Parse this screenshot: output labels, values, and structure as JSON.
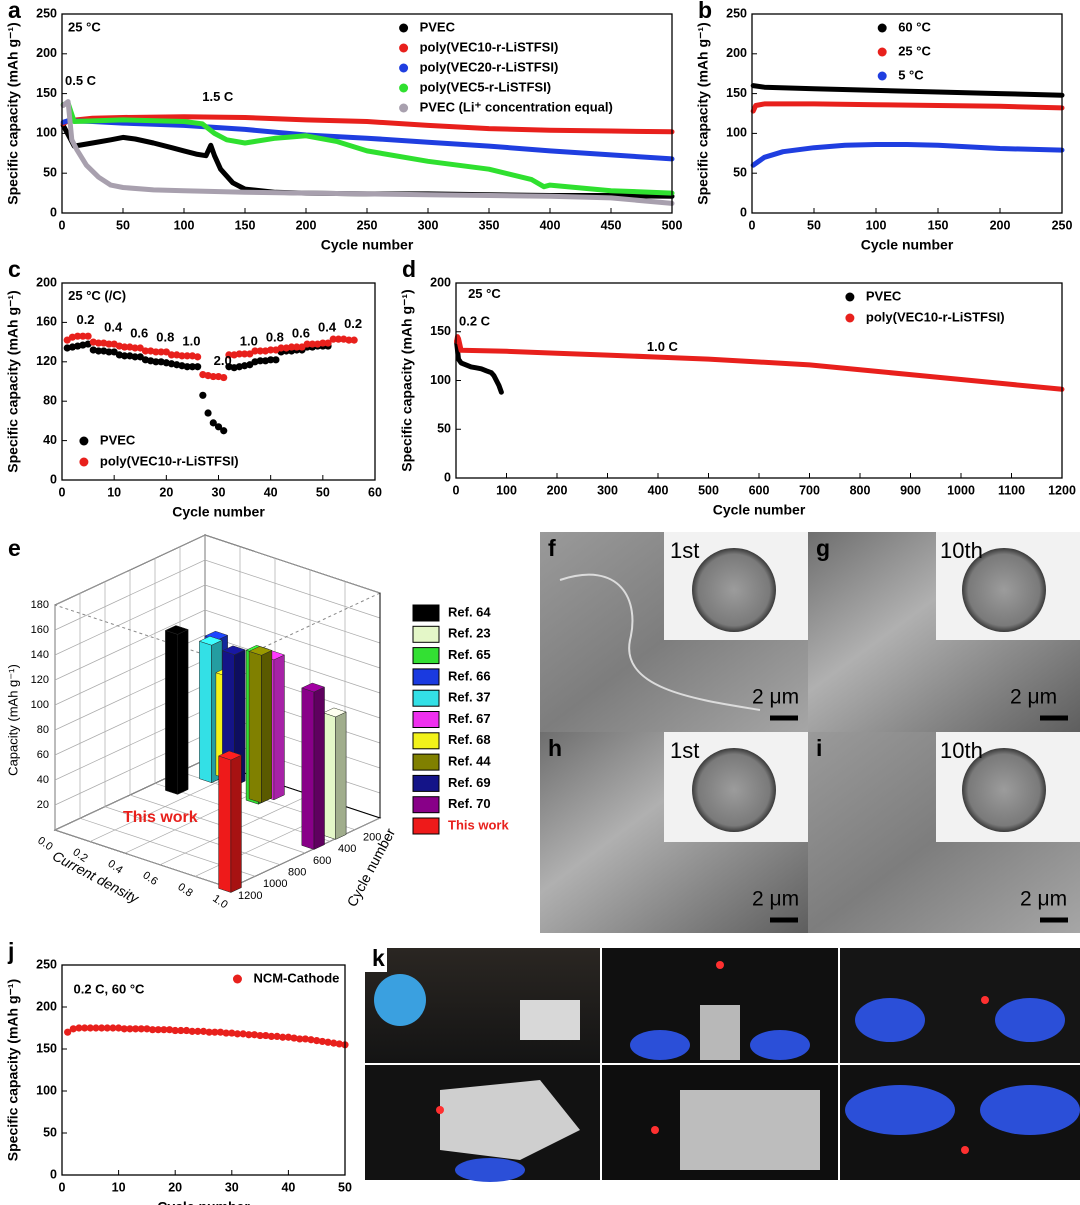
{
  "chart_data": [
    {
      "type": "line",
      "panel": "a",
      "xlabel": "Cycle number",
      "ylabel": "Specific capacity (mAh g⁻¹)",
      "xlim": [
        0,
        500
      ],
      "xticks": [
        0,
        50,
        100,
        150,
        200,
        250,
        300,
        350,
        400,
        450,
        500
      ],
      "ylim": [
        0,
        250
      ],
      "yticks": [
        0,
        50,
        100,
        150,
        200,
        250
      ],
      "legend": "upper right",
      "annotations": [
        "25 °C",
        "0.5 C",
        "1.5 C"
      ],
      "series": [
        {
          "name": "PVEC",
          "color": "#000000",
          "x": [
            1,
            10,
            25,
            40,
            50,
            60,
            75,
            90,
            100,
            110,
            118,
            122,
            125,
            130,
            140,
            150,
            175,
            200,
            250,
            300,
            350,
            400,
            450,
            500
          ],
          "values": [
            110,
            84,
            88,
            92,
            95,
            93,
            88,
            82,
            78,
            74,
            72,
            85,
            72,
            55,
            38,
            30,
            26,
            25,
            24,
            24,
            23,
            22,
            22,
            21
          ]
        },
        {
          "name": "poly(VEC10-r-LiSTFSI)",
          "color": "#e8201c",
          "x": [
            1,
            5,
            25,
            50,
            100,
            150,
            200,
            250,
            300,
            350,
            400,
            450,
            500
          ],
          "values": [
            112,
            116,
            119,
            120,
            121,
            120,
            117,
            115,
            110,
            106,
            104,
            103,
            102
          ]
        },
        {
          "name": "poly(VEC20-r-LiSTFSI)",
          "color": "#1f3ee0",
          "x": [
            1,
            5,
            25,
            50,
            100,
            150,
            200,
            250,
            300,
            350,
            400,
            450,
            500
          ],
          "values": [
            114,
            116,
            115,
            113,
            110,
            105,
            98,
            94,
            89,
            84,
            78,
            73,
            68
          ]
        },
        {
          "name": "poly(VEC5-r-LiSTFSI)",
          "color": "#2fe02f",
          "x": [
            1,
            5,
            10,
            50,
            100,
            115,
            125,
            135,
            150,
            175,
            200,
            225,
            250,
            300,
            350,
            385,
            395,
            400,
            450,
            500
          ],
          "values": [
            136,
            138,
            115,
            117,
            115,
            112,
            100,
            92,
            88,
            94,
            97,
            90,
            78,
            65,
            55,
            42,
            33,
            35,
            28,
            25
          ]
        },
        {
          "name": "PVEC (Li⁺ concentration equal)",
          "color": "#a8a0ae",
          "x": [
            1,
            5,
            8,
            12,
            20,
            30,
            40,
            50,
            75,
            100,
            150,
            200,
            250,
            300,
            350,
            400,
            450,
            500
          ],
          "values": [
            135,
            140,
            92,
            80,
            60,
            45,
            35,
            32,
            29,
            28,
            26,
            25,
            24,
            23,
            22,
            21,
            19,
            12
          ]
        }
      ]
    },
    {
      "type": "line",
      "panel": "b",
      "xlabel": "Cycle number",
      "ylabel": "Specific capacity (mAh g⁻¹)",
      "xlim": [
        0,
        250
      ],
      "xticks": [
        0,
        50,
        100,
        150,
        200,
        250
      ],
      "ylim": [
        0,
        250
      ],
      "yticks": [
        0,
        50,
        100,
        150,
        200,
        250
      ],
      "legend": "upper right",
      "series": [
        {
          "name": "60 °C",
          "color": "#000000",
          "x": [
            1,
            10,
            50,
            100,
            150,
            200,
            250
          ],
          "values": [
            160,
            158,
            156,
            154,
            152,
            150,
            148
          ]
        },
        {
          "name": "25 °C",
          "color": "#e8201c",
          "x": [
            1,
            3,
            10,
            50,
            100,
            150,
            200,
            250
          ],
          "values": [
            128,
            135,
            137,
            137,
            136,
            135,
            134,
            132
          ]
        },
        {
          "name": "5 °C",
          "color": "#1f3ee0",
          "x": [
            1,
            10,
            25,
            50,
            75,
            100,
            125,
            150,
            175,
            200,
            250
          ],
          "values": [
            60,
            70,
            77,
            82,
            85,
            86,
            86,
            85,
            83,
            81,
            79
          ]
        }
      ]
    },
    {
      "type": "scatter",
      "panel": "c",
      "xlabel": "Cycle number",
      "ylabel": "Specific capacity (mAh g⁻¹)",
      "xlim": [
        0,
        60
      ],
      "xticks": [
        0,
        10,
        20,
        30,
        40,
        50,
        60
      ],
      "ylim": [
        0,
        200
      ],
      "yticks": [
        0,
        40,
        80,
        120,
        160,
        200
      ],
      "legend": "lower left",
      "annotations": [
        "25 °C (/C)",
        "0.2",
        "0.4",
        "0.6",
        "0.8",
        "1.0",
        "2.0",
        "1.0",
        "0.8",
        "0.6",
        "0.4",
        "0.2"
      ],
      "series": [
        {
          "name": "PVEC",
          "color": "#000000",
          "x": [
            1,
            2,
            3,
            4,
            5,
            6,
            7,
            8,
            9,
            10,
            11,
            12,
            13,
            14,
            15,
            16,
            17,
            18,
            19,
            20,
            21,
            22,
            23,
            24,
            25,
            26,
            27,
            28,
            29,
            30,
            31,
            32,
            33,
            34,
            35,
            36,
            37,
            38,
            39,
            40,
            41,
            42,
            43,
            44,
            45,
            46,
            47,
            48,
            49,
            50,
            51
          ],
          "values": [
            134,
            135,
            136,
            137,
            138,
            132,
            131,
            131,
            130,
            130,
            127,
            126,
            126,
            125,
            125,
            122,
            121,
            120,
            120,
            119,
            118,
            117,
            116,
            115,
            115,
            115,
            86,
            68,
            58,
            54,
            50,
            115,
            114,
            115,
            116,
            117,
            120,
            121,
            121,
            122,
            122,
            130,
            131,
            131,
            132,
            132,
            135,
            135,
            136,
            136,
            136
          ]
        },
        {
          "name": "poly(VEC10-r-LiSTFSI)",
          "color": "#e8201c",
          "x": [
            1,
            2,
            3,
            4,
            5,
            6,
            7,
            8,
            9,
            10,
            11,
            12,
            13,
            14,
            15,
            16,
            17,
            18,
            19,
            20,
            21,
            22,
            23,
            24,
            25,
            26,
            27,
            28,
            29,
            30,
            31,
            32,
            33,
            34,
            35,
            36,
            37,
            38,
            39,
            40,
            41,
            42,
            43,
            44,
            45,
            46,
            47,
            48,
            49,
            50,
            51,
            52,
            53,
            54,
            55,
            56
          ],
          "values": [
            142,
            145,
            146,
            146,
            146,
            140,
            139,
            139,
            138,
            138,
            136,
            135,
            135,
            134,
            134,
            131,
            131,
            130,
            130,
            130,
            127,
            127,
            126,
            126,
            126,
            125,
            107,
            106,
            105,
            105,
            104,
            127,
            127,
            128,
            128,
            128,
            131,
            131,
            131,
            132,
            132,
            134,
            134,
            135,
            135,
            135,
            138,
            138,
            138,
            139,
            139,
            143,
            143,
            143,
            142,
            142
          ]
        }
      ]
    },
    {
      "type": "line",
      "panel": "d",
      "xlabel": "Cycle number",
      "ylabel": "Specific capacity (mAh g⁻¹)",
      "xlim": [
        0,
        1200
      ],
      "xticks": [
        0,
        100,
        200,
        300,
        400,
        500,
        600,
        700,
        800,
        900,
        1000,
        1100,
        1200
      ],
      "ylim": [
        0,
        200
      ],
      "yticks": [
        0,
        50,
        100,
        150,
        200
      ],
      "legend": "upper right",
      "annotations": [
        "25 °C",
        "0.2 C",
        "1.0 C"
      ],
      "series": [
        {
          "name": "PVEC",
          "color": "#000000",
          "x": [
            1,
            5,
            10,
            20,
            30,
            40,
            50,
            60,
            70,
            75,
            80,
            85,
            90
          ],
          "values": [
            140,
            122,
            118,
            116,
            114,
            113,
            112,
            110,
            108,
            105,
            100,
            95,
            88
          ]
        },
        {
          "name": "poly(VEC10-r-LiSTFSI)",
          "color": "#e8201c",
          "x": [
            1,
            3,
            5,
            10,
            100,
            200,
            300,
            400,
            500,
            600,
            700,
            800,
            900,
            1000,
            1100,
            1200
          ],
          "values": [
            140,
            145,
            143,
            131,
            130,
            128,
            126,
            124,
            122,
            119,
            116,
            111,
            106,
            101,
            96,
            91
          ]
        }
      ]
    },
    {
      "type": "bar3d",
      "panel": "e",
      "zlabel": "Capacity (mAh g⁻¹)",
      "xlabel": "Current density",
      "ylabel": "Cycle number",
      "xlim": [
        0,
        1
      ],
      "xticks": [
        {
          "value": 0,
          "label": "0.0"
        },
        0.2,
        0.4,
        0.6,
        0.8,
        {
          "value": 1,
          "label": "1.0"
        }
      ],
      "ylim": [
        0,
        1200
      ],
      "yticks": [
        200,
        400,
        600,
        800,
        1000,
        1200
      ],
      "zlim": [
        0,
        180
      ],
      "zticks": [
        20,
        40,
        60,
        80,
        100,
        120,
        140,
        160,
        180
      ],
      "annotations": [
        "This work"
      ],
      "annotation_color": "#e8201c",
      "series": [
        {
          "name": "Ref. 64",
          "color": "#000000",
          "x": 0.12,
          "y": 394,
          "value": 128
        },
        {
          "name": "Ref. 23",
          "color": "#e4f7c8",
          "x": 0.97,
          "y": 320,
          "value": 98
        },
        {
          "name": "Ref. 65",
          "color": "#33e033",
          "x": 0.46,
          "y": 224,
          "value": 120
        },
        {
          "name": "Ref. 66",
          "color": "#1a3ae0",
          "x": 0.15,
          "y": 120,
          "value": 112
        },
        {
          "name": "Ref. 37",
          "color": "#33e0e6",
          "x": 0.15,
          "y": 164,
          "value": 110
        },
        {
          "name": "Ref. 67",
          "color": "#ee30ee",
          "x": 0.48,
          "y": 128,
          "value": 112
        },
        {
          "name": "Ref. 68",
          "color": "#f2f21a",
          "x": 0.18,
          "y": 74,
          "value": 82
        },
        {
          "name": "Ref. 44",
          "color": "#808000",
          "x": 0.46,
          "y": 200,
          "value": 118
        },
        {
          "name": "Ref. 69",
          "color": "#141488",
          "x": 0.25,
          "y": 120,
          "value": 105
        },
        {
          "name": "Ref. 70",
          "color": "#880088",
          "x": 0.97,
          "y": 493,
          "value": 126
        },
        {
          "name": "This work",
          "color": "#ee1a1a",
          "x": 1.0,
          "y": 1200,
          "value": 106,
          "label_color": "#e8201c"
        }
      ]
    },
    {
      "type": "scatter",
      "panel": "j",
      "xlabel": "Cycle number",
      "ylabel": "Specific capacity (mAh g⁻¹)",
      "xlim": [
        0,
        50
      ],
      "xticks": [
        0,
        10,
        20,
        30,
        40,
        50
      ],
      "ylim": [
        0,
        250
      ],
      "yticks": [
        0,
        50,
        100,
        150,
        200,
        250
      ],
      "legend": "upper right",
      "annotations": [
        "0.2 C, 60 °C"
      ],
      "series": [
        {
          "name": "NCM-Cathode",
          "color": "#e8201c",
          "x": [
            1,
            2,
            3,
            4,
            5,
            6,
            7,
            8,
            9,
            10,
            11,
            12,
            13,
            14,
            15,
            16,
            17,
            18,
            19,
            20,
            21,
            22,
            23,
            24,
            25,
            26,
            27,
            28,
            29,
            30,
            31,
            32,
            33,
            34,
            35,
            36,
            37,
            38,
            39,
            40,
            41,
            42,
            43,
            44,
            45,
            46,
            47,
            48,
            49,
            50
          ],
          "values": [
            170,
            174,
            175,
            175,
            175,
            175,
            175,
            175,
            175,
            175,
            174,
            174,
            174,
            174,
            174,
            173,
            173,
            173,
            173,
            172,
            172,
            172,
            171,
            171,
            171,
            170,
            170,
            170,
            169,
            169,
            168,
            168,
            167,
            167,
            166,
            166,
            165,
            165,
            164,
            164,
            163,
            162,
            162,
            161,
            160,
            159,
            158,
            157,
            156,
            155
          ]
        }
      ]
    }
  ],
  "sem_images": [
    {
      "panel": "f",
      "inset": "1st",
      "scale": "2 μm"
    },
    {
      "panel": "g",
      "inset": "10th",
      "scale": "2 μm"
    },
    {
      "panel": "h",
      "inset": "1st",
      "scale": "2 μm"
    },
    {
      "panel": "i",
      "inset": "10th",
      "scale": "2 μm"
    }
  ],
  "photos": {
    "panel": "k"
  }
}
